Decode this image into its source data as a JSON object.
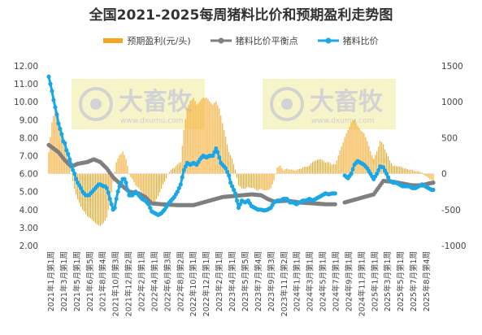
{
  "chart_data": {
    "type": "bar+line",
    "title": "全国2021-2025每周猪料比价和预期盈利走势图",
    "legend_position": "top",
    "grid": false,
    "colors": {
      "profit": "#f5a623",
      "breakeven": "#7f7f7f",
      "ratio": "#1ba7e3"
    },
    "series": [
      {
        "name": "预期盈利(元/头)",
        "type": "bar",
        "axis": "right"
      },
      {
        "name": "猪料比价平衡点",
        "type": "line",
        "axis": "left"
      },
      {
        "name": "猪料比价",
        "type": "line",
        "axis": "left"
      }
    ],
    "left_axis": {
      "min": 2.0,
      "max": 12.0,
      "step": 1.0,
      "ticks": [
        "2.00",
        "3.00",
        "4.00",
        "5.00",
        "6.00",
        "7.00",
        "8.00",
        "9.00",
        "10.00",
        "11.00",
        "12.00"
      ]
    },
    "right_axis": {
      "min": -1000,
      "max": 1500,
      "step": 500,
      "ticks": [
        "-1000",
        "-500",
        "0",
        "500",
        "1000",
        "1500"
      ]
    },
    "x_tick_labels": [
      "2021年1月第1周",
      "2021年3月第1周",
      "2021年5月第1周",
      "2021年6月第5周",
      "2021年8月第4周",
      "2021年10月第3周",
      "2021年12月第2周",
      "2022年2月第1周",
      "2022年4月第1周",
      "2022年6月第3周",
      "2022年8月第2周",
      "2022年10月第1周",
      "2022年12月第1周",
      "2023年2月第1周",
      "2023年4月第1周",
      "2023年5月第5周",
      "2023年7月第4周",
      "2023年9月第3周",
      "2023年11月第2周",
      "2024年1月第1周",
      "2024年3月第1周",
      "2024年5月第1周",
      "2024年7月第1周",
      "2024年9月第1周",
      "2024年11月第1周",
      "2025年1月第1周",
      "2025年3月第1周",
      "2025年5月第1周",
      "2025年7月第1周",
      "2025年8月第4周"
    ],
    "weeks_total": 240,
    "breakeven": {
      "points": [
        [
          0,
          7.6
        ],
        [
          6,
          7.2
        ],
        [
          10,
          6.75
        ],
        [
          14,
          6.4
        ],
        [
          18,
          6.55
        ],
        [
          24,
          6.65
        ],
        [
          28,
          6.8
        ],
        [
          32,
          6.65
        ],
        [
          36,
          6.3
        ],
        [
          40,
          5.8
        ],
        [
          46,
          5.3
        ],
        [
          50,
          5.0
        ],
        [
          56,
          4.9
        ],
        [
          60,
          4.7
        ],
        [
          64,
          4.35
        ],
        [
          70,
          4.3
        ],
        [
          80,
          4.25
        ],
        [
          90,
          4.25
        ],
        [
          96,
          4.4
        ],
        [
          102,
          4.55
        ],
        [
          108,
          4.7
        ],
        [
          114,
          4.75
        ],
        [
          120,
          4.8
        ],
        [
          126,
          4.85
        ],
        [
          132,
          4.8
        ],
        [
          136,
          4.6
        ],
        [
          140,
          4.45
        ],
        [
          148,
          4.5
        ],
        [
          156,
          4.4
        ],
        [
          164,
          4.35
        ],
        [
          172,
          4.3
        ],
        [
          178,
          4.3
        ]
      ],
      "points_b": [
        [
          184,
          4.4
        ],
        [
          190,
          4.55
        ],
        [
          196,
          4.7
        ],
        [
          202,
          4.85
        ],
        [
          208,
          5.6
        ],
        [
          214,
          5.55
        ],
        [
          220,
          5.45
        ],
        [
          226,
          5.35
        ],
        [
          232,
          5.35
        ],
        [
          236,
          5.45
        ],
        [
          239,
          5.5
        ]
      ]
    },
    "ratio": {
      "points": [
        [
          0,
          11.4
        ],
        [
          1,
          11.0
        ],
        [
          2,
          10.6
        ],
        [
          3,
          10.1
        ],
        [
          4,
          9.7
        ],
        [
          5,
          9.3
        ],
        [
          6,
          8.8
        ],
        [
          7,
          8.5
        ],
        [
          8,
          8.2
        ],
        [
          9,
          7.8
        ],
        [
          10,
          7.7
        ],
        [
          11,
          7.3
        ],
        [
          12,
          7.1
        ],
        [
          13,
          6.8
        ],
        [
          14,
          6.5
        ],
        [
          15,
          6.2
        ],
        [
          16,
          6.0
        ],
        [
          17,
          5.7
        ],
        [
          18,
          5.5
        ],
        [
          19,
          5.35
        ],
        [
          20,
          5.2
        ],
        [
          21,
          5.0
        ],
        [
          22,
          4.9
        ],
        [
          23,
          4.8
        ],
        [
          24,
          4.8
        ],
        [
          25,
          4.8
        ],
        [
          26,
          4.9
        ],
        [
          27,
          5.0
        ],
        [
          28,
          5.1
        ],
        [
          29,
          5.2
        ],
        [
          30,
          5.3
        ],
        [
          31,
          5.4
        ],
        [
          32,
          5.4
        ],
        [
          33,
          5.35
        ],
        [
          34,
          5.3
        ],
        [
          35,
          5.3
        ],
        [
          36,
          5.2
        ],
        [
          37,
          4.95
        ],
        [
          38,
          4.6
        ],
        [
          39,
          4.3
        ],
        [
          40,
          4.0
        ],
        [
          41,
          4.1
        ],
        [
          42,
          4.6
        ],
        [
          43,
          5.0
        ],
        [
          44,
          5.3
        ],
        [
          45,
          5.5
        ],
        [
          46,
          5.7
        ],
        [
          47,
          5.7
        ],
        [
          48,
          5.5
        ],
        [
          49,
          5.1
        ],
        [
          50,
          4.8
        ],
        [
          52,
          4.8
        ],
        [
          54,
          5.0
        ],
        [
          56,
          4.8
        ],
        [
          58,
          4.6
        ],
        [
          60,
          4.5
        ],
        [
          62,
          4.3
        ],
        [
          64,
          3.9
        ],
        [
          66,
          3.8
        ],
        [
          68,
          3.7
        ],
        [
          70,
          3.8
        ],
        [
          72,
          4.0
        ],
        [
          74,
          4.3
        ],
        [
          76,
          4.5
        ],
        [
          78,
          4.7
        ],
        [
          80,
          5.0
        ],
        [
          82,
          5.4
        ],
        [
          84,
          6.2
        ],
        [
          86,
          6.6
        ],
        [
          88,
          6.5
        ],
        [
          90,
          6.6
        ],
        [
          92,
          6.5
        ],
        [
          94,
          6.8
        ],
        [
          96,
          7.0
        ],
        [
          98,
          6.9
        ],
        [
          100,
          7.0
        ],
        [
          102,
          7.0
        ],
        [
          103,
          7.2
        ],
        [
          104,
          7.4
        ],
        [
          105,
          7.2
        ],
        [
          106,
          6.9
        ],
        [
          107,
          6.6
        ],
        [
          108,
          6.5
        ],
        [
          109,
          6.4
        ],
        [
          110,
          6.3
        ],
        [
          111,
          6.1
        ],
        [
          112,
          5.9
        ],
        [
          113,
          5.5
        ],
        [
          114,
          5.3
        ],
        [
          116,
          4.9
        ],
        [
          118,
          4.1
        ],
        [
          120,
          4.5
        ],
        [
          122,
          4.4
        ],
        [
          124,
          4.5
        ],
        [
          126,
          4.2
        ],
        [
          128,
          4.1
        ],
        [
          130,
          4.0
        ],
        [
          132,
          4.0
        ],
        [
          134,
          3.95
        ],
        [
          136,
          4.0
        ],
        [
          138,
          4.1
        ],
        [
          140,
          4.4
        ],
        [
          142,
          4.5
        ],
        [
          144,
          4.5
        ],
        [
          146,
          4.6
        ],
        [
          148,
          4.6
        ],
        [
          150,
          4.4
        ],
        [
          152,
          4.4
        ],
        [
          154,
          4.3
        ],
        [
          156,
          4.4
        ],
        [
          158,
          4.5
        ],
        [
          160,
          4.5
        ],
        [
          162,
          4.6
        ],
        [
          164,
          4.5
        ],
        [
          166,
          4.6
        ],
        [
          168,
          4.7
        ],
        [
          170,
          4.8
        ],
        [
          172,
          4.9
        ],
        [
          174,
          4.85
        ],
        [
          176,
          4.9
        ],
        [
          178,
          4.9
        ]
      ],
      "points_b": [
        [
          184,
          5.9
        ],
        [
          186,
          5.75
        ],
        [
          188,
          6.0
        ],
        [
          190,
          6.5
        ],
        [
          192,
          6.7
        ],
        [
          194,
          6.6
        ],
        [
          196,
          6.5
        ],
        [
          198,
          6.3
        ],
        [
          200,
          6.0
        ],
        [
          202,
          5.7
        ],
        [
          204,
          6.0
        ],
        [
          206,
          6.4
        ],
        [
          208,
          6.35
        ],
        [
          210,
          6.0
        ],
        [
          212,
          5.6
        ],
        [
          214,
          5.5
        ],
        [
          216,
          5.5
        ],
        [
          218,
          5.4
        ],
        [
          220,
          5.3
        ],
        [
          222,
          5.3
        ],
        [
          224,
          5.3
        ],
        [
          226,
          5.2
        ],
        [
          228,
          5.2
        ],
        [
          230,
          5.3
        ],
        [
          232,
          5.4
        ],
        [
          234,
          5.3
        ],
        [
          236,
          5.2
        ],
        [
          238,
          5.1
        ],
        [
          239,
          5.1
        ]
      ]
    },
    "profit": {
      "points": [
        [
          0,
          300
        ],
        [
          2,
          700
        ],
        [
          4,
          900
        ],
        [
          6,
          800
        ],
        [
          8,
          600
        ],
        [
          10,
          400
        ],
        [
          12,
          200
        ],
        [
          14,
          0
        ],
        [
          16,
          -200
        ],
        [
          18,
          -350
        ],
        [
          20,
          -450
        ],
        [
          22,
          -520
        ],
        [
          24,
          -580
        ],
        [
          26,
          -620
        ],
        [
          28,
          -650
        ],
        [
          30,
          -700
        ],
        [
          32,
          -720
        ],
        [
          34,
          -680
        ],
        [
          36,
          -600
        ],
        [
          38,
          -400
        ],
        [
          40,
          -100
        ],
        [
          42,
          150
        ],
        [
          44,
          250
        ],
        [
          46,
          300
        ],
        [
          48,
          200
        ],
        [
          50,
          0
        ],
        [
          54,
          -150
        ],
        [
          58,
          -250
        ],
        [
          62,
          -350
        ],
        [
          66,
          -400
        ],
        [
          70,
          -200
        ],
        [
          74,
          0
        ],
        [
          78,
          80
        ],
        [
          82,
          160
        ],
        [
          84,
          600
        ],
        [
          86,
          900
        ],
        [
          88,
          1000
        ],
        [
          90,
          1050
        ],
        [
          92,
          950
        ],
        [
          94,
          1000
        ],
        [
          96,
          1050
        ],
        [
          98,
          1050
        ],
        [
          100,
          1000
        ],
        [
          102,
          950
        ],
        [
          104,
          1000
        ],
        [
          106,
          900
        ],
        [
          108,
          700
        ],
        [
          110,
          500
        ],
        [
          112,
          300
        ],
        [
          114,
          200
        ],
        [
          116,
          50
        ],
        [
          118,
          -150
        ],
        [
          120,
          -200
        ],
        [
          122,
          -200
        ],
        [
          124,
          -180
        ],
        [
          126,
          -190
        ],
        [
          128,
          -200
        ],
        [
          130,
          -230
        ],
        [
          132,
          -200
        ],
        [
          134,
          -230
        ],
        [
          136,
          -220
        ],
        [
          138,
          -200
        ],
        [
          140,
          -80
        ],
        [
          142,
          80
        ],
        [
          144,
          100
        ],
        [
          146,
          40
        ],
        [
          148,
          60
        ],
        [
          150,
          50
        ],
        [
          152,
          40
        ],
        [
          154,
          40
        ],
        [
          156,
          60
        ],
        [
          158,
          80
        ],
        [
          160,
          90
        ],
        [
          162,
          100
        ],
        [
          164,
          160
        ],
        [
          166,
          170
        ],
        [
          168,
          200
        ],
        [
          170,
          180
        ],
        [
          172,
          150
        ],
        [
          174,
          150
        ],
        [
          176,
          120
        ],
        [
          178,
          120
        ],
        [
          184,
          500
        ],
        [
          186,
          600
        ],
        [
          188,
          700
        ],
        [
          190,
          750
        ],
        [
          192,
          650
        ],
        [
          194,
          600
        ],
        [
          196,
          550
        ],
        [
          198,
          450
        ],
        [
          200,
          300
        ],
        [
          202,
          200
        ],
        [
          204,
          300
        ],
        [
          206,
          450
        ],
        [
          208,
          400
        ],
        [
          210,
          280
        ],
        [
          212,
          180
        ],
        [
          214,
          100
        ],
        [
          216,
          100
        ],
        [
          218,
          90
        ],
        [
          220,
          80
        ],
        [
          222,
          60
        ],
        [
          224,
          50
        ],
        [
          226,
          40
        ],
        [
          228,
          30
        ],
        [
          230,
          20
        ],
        [
          232,
          10
        ],
        [
          234,
          -20
        ],
        [
          236,
          -50
        ],
        [
          238,
          -80
        ],
        [
          239,
          -100
        ]
      ]
    }
  },
  "watermarks": [
    {
      "brand": "大畜牧",
      "url": "www.dxumu.com"
    },
    {
      "brand": "大畜牧",
      "url": "www.dxumu.com"
    }
  ]
}
